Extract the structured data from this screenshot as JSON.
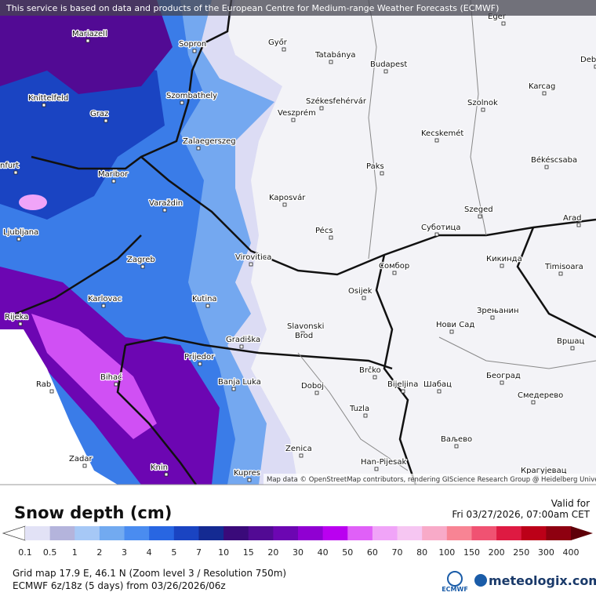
{
  "banner": "This service is based on data and products of the European Centre for Medium-range Weather Forecasts (ECMWF)",
  "cities": [
    "Eger",
    "Győr",
    "Tatabánya",
    "Budapest",
    "Mariazell",
    "Sopron",
    "Knittelfeld",
    "Szombathely",
    "Székesfehérvár",
    "Szolnok",
    "Karcag",
    "Graz",
    "Veszprém",
    "Kecskemét",
    "Zalaegerszeg",
    "Békéscsaba",
    "Paks",
    "Maribor",
    "Kaposvár",
    "Varaždin",
    "Szeged",
    "Arad",
    "Ljubljana",
    "Pécs",
    "Суботица",
    "Zagreb",
    "Virovitica",
    "Сомбор",
    "Кикинда",
    "Timisoara",
    "Karlovac",
    "Kutina",
    "Osijek",
    "Rijeka",
    "Нови Сад",
    "Зрењанин",
    "Slavonski",
    "Brod",
    "Gradiška",
    "Вршац",
    "Prijedor",
    "Brčko",
    "Bihać",
    "Banja Luka",
    "Bijeljina",
    "Шабац",
    "Београд",
    "Rab",
    "Doboj",
    "Смедерево",
    "Tuzla",
    "Zenica",
    "Ваљево",
    "Zadar",
    "Han-Pijesak",
    "Knin",
    "Kupres",
    "Крагујевац",
    "nfurt",
    "Deb"
  ],
  "attribution": "Map data © OpenStreetMap contributors, rendering GIScience Research Group @ Heidelberg University",
  "legend": {
    "title": "Snow depth (cm)",
    "valid_label": "Valid for",
    "valid_time": "Fri 03/27/2026, 07:00am CET",
    "ticks": [
      0.1,
      0.5,
      1,
      2,
      3,
      4,
      5,
      7,
      10,
      15,
      20,
      30,
      40,
      50,
      60,
      70,
      80,
      100,
      150,
      200,
      250,
      300,
      400
    ],
    "colors": [
      "#e2e2f6",
      "#b4b4dc",
      "#a6c8f6",
      "#72aaf0",
      "#4a8cf0",
      "#2866e2",
      "#1a44c2",
      "#142a92",
      "#3a0a7a",
      "#520a94",
      "#6c06b2",
      "#9000d2",
      "#ba00f0",
      "#e060f8",
      "#f0a4f8",
      "#f6c6f2",
      "#f8aac8",
      "#f88494",
      "#f05272",
      "#de1a42",
      "#bc0018",
      "#8e0010"
    ],
    "end_color": "#5e0008"
  },
  "footer": {
    "grid": "Grid map 17.9 E, 46.1 N (Zoom level 3 / Resolution 750m)",
    "model": "ECMWF 6z/18z (5 days) from 03/26/2026/06z",
    "ecmwf": "ECMWF",
    "brand": "meteologix.com"
  }
}
